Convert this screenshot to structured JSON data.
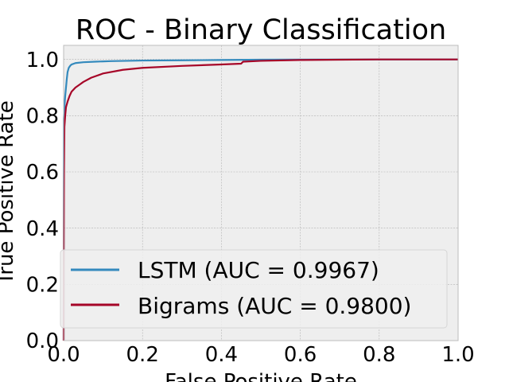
{
  "chart_data": {
    "type": "line",
    "title": "ROC - Binary Classification",
    "xlabel": "False Positive Rate",
    "ylabel": "True Positive Rate",
    "xlim": [
      0,
      1
    ],
    "ylim": [
      0,
      1.05
    ],
    "xticks": [
      "0.0",
      "0.2",
      "0.4",
      "0.6",
      "0.8",
      "1.0"
    ],
    "yticks": [
      "0.0",
      "0.2",
      "0.4",
      "0.6",
      "0.8",
      "1.0"
    ],
    "grid": true,
    "legend_position": "lower-right",
    "series": [
      {
        "name": "LSTM (AUC = 0.9967)",
        "color": "#348ABD",
        "x": [
          0,
          0.0005,
          0.002,
          0.004,
          0.006,
          0.008,
          0.01,
          0.013,
          0.017,
          0.02,
          0.03,
          0.05,
          0.08,
          0.12,
          0.2,
          0.3,
          0.4,
          0.5,
          0.6,
          0.8,
          1.0
        ],
        "y": [
          0,
          0.79,
          0.83,
          0.87,
          0.9,
          0.93,
          0.955,
          0.97,
          0.978,
          0.982,
          0.987,
          0.99,
          0.992,
          0.994,
          0.996,
          0.997,
          0.998,
          0.999,
          0.9995,
          1.0,
          1.0
        ]
      },
      {
        "name": "Bigrams (AUC = 0.9800)",
        "color": "#A60628",
        "x": [
          0,
          0.0003,
          0.001,
          0.002,
          0.004,
          0.006,
          0.01,
          0.015,
          0.02,
          0.03,
          0.04,
          0.05,
          0.07,
          0.1,
          0.15,
          0.2,
          0.3,
          0.4,
          0.45,
          0.455,
          0.5,
          0.6,
          0.7,
          0.8,
          1.0
        ],
        "y": [
          0,
          0.3,
          0.6,
          0.76,
          0.8,
          0.83,
          0.85,
          0.87,
          0.885,
          0.9,
          0.91,
          0.92,
          0.935,
          0.95,
          0.963,
          0.97,
          0.977,
          0.982,
          0.985,
          0.992,
          0.995,
          0.998,
          0.999,
          1.0,
          1.0
        ]
      }
    ]
  }
}
